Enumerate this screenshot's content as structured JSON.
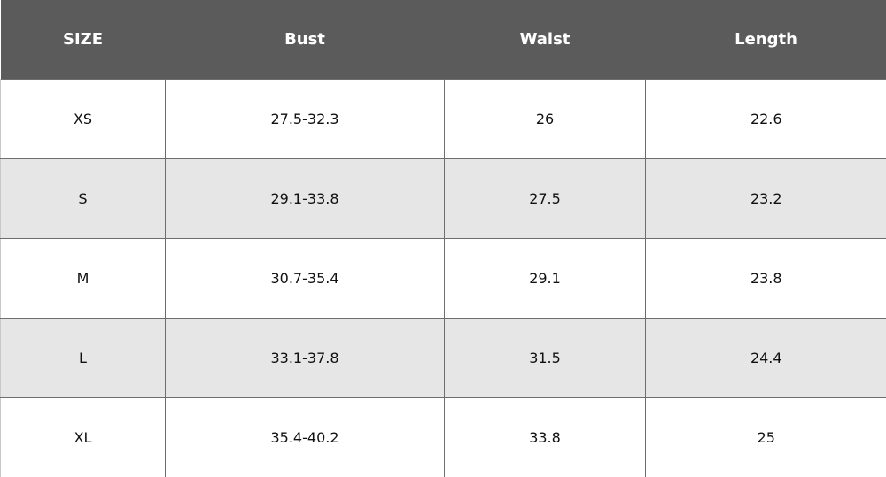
{
  "table": {
    "headers": [
      "SIZE",
      "Bust",
      "Waist",
      "Length"
    ],
    "rows": [
      [
        "XS",
        "27.5-32.3",
        "26",
        "22.6"
      ],
      [
        "S",
        "29.1-33.8",
        "27.5",
        "23.2"
      ],
      [
        "M",
        "30.7-35.4",
        "29.1",
        "23.8"
      ],
      [
        "L",
        "33.1-37.8",
        "31.5",
        "24.4"
      ],
      [
        "XL",
        "35.4-40.2",
        "33.8",
        "25"
      ]
    ]
  },
  "colors": {
    "header_background": "#5b5b5b",
    "header_text": "#ffffff",
    "stripe_background": "#e6e6e6",
    "grid_line": "#6e6e6e"
  }
}
